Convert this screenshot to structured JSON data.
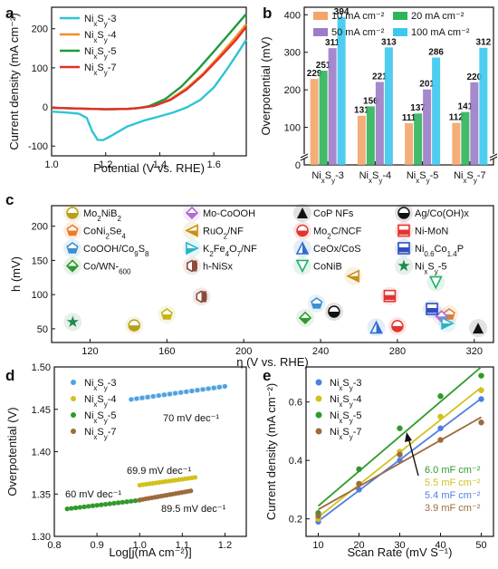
{
  "panels": {
    "a": {
      "label": "a"
    },
    "b": {
      "label": "b"
    },
    "c": {
      "label": "c"
    },
    "d": {
      "label": "d"
    },
    "e": {
      "label": "e"
    }
  },
  "chart_data": [
    {
      "panel": "a",
      "type": "line",
      "xlabel": "Potential (V vs. RHE)",
      "ylabel": "Current density (mA cm⁻²)",
      "xlim": [
        1.0,
        1.72
      ],
      "ylim": [
        -125,
        255
      ],
      "xticks": [
        "1.0",
        "1.2",
        "1.4",
        "1.6"
      ],
      "yticks": [
        "-100",
        "0",
        "100",
        "200"
      ],
      "legend_placement": "top-left",
      "series": [
        {
          "name": "NixSy-3",
          "color": "#2ec4d6",
          "points": [
            [
              1.0,
              -12
            ],
            [
              1.05,
              -14
            ],
            [
              1.1,
              -17
            ],
            [
              1.13,
              -28
            ],
            [
              1.15,
              -62
            ],
            [
              1.17,
              -84
            ],
            [
              1.19,
              -85
            ],
            [
              1.22,
              -74
            ],
            [
              1.28,
              -50
            ],
            [
              1.34,
              -35
            ],
            [
              1.4,
              -24
            ],
            [
              1.45,
              -14
            ],
            [
              1.5,
              -1
            ],
            [
              1.55,
              18
            ],
            [
              1.6,
              50
            ],
            [
              1.65,
              98
            ],
            [
              1.7,
              150
            ],
            [
              1.72,
              172
            ]
          ]
        },
        {
          "name": "NixSy-4",
          "color": "#f28c28",
          "points": [
            [
              1.0,
              -2
            ],
            [
              1.1,
              -4
            ],
            [
              1.2,
              -6
            ],
            [
              1.28,
              -5
            ],
            [
              1.32,
              -3
            ],
            [
              1.38,
              3
            ],
            [
              1.44,
              20
            ],
            [
              1.5,
              48
            ],
            [
              1.56,
              85
            ],
            [
              1.62,
              130
            ],
            [
              1.68,
              178
            ],
            [
              1.72,
              212
            ]
          ]
        },
        {
          "name": "NixSy-5",
          "color": "#1f9a3c",
          "points": [
            [
              1.0,
              -2
            ],
            [
              1.1,
              -4
            ],
            [
              1.2,
              -6
            ],
            [
              1.28,
              -5
            ],
            [
              1.32,
              -3
            ],
            [
              1.36,
              2
            ],
            [
              1.42,
              20
            ],
            [
              1.48,
              52
            ],
            [
              1.54,
              95
            ],
            [
              1.6,
              142
            ],
            [
              1.66,
              190
            ],
            [
              1.72,
              238
            ]
          ]
        },
        {
          "name": "NixSy-7",
          "color": "#e0312a",
          "points": [
            [
              1.0,
              -2
            ],
            [
              1.1,
              -4
            ],
            [
              1.2,
              -6
            ],
            [
              1.28,
              -5
            ],
            [
              1.32,
              -3
            ],
            [
              1.38,
              3
            ],
            [
              1.44,
              18
            ],
            [
              1.5,
              45
            ],
            [
              1.56,
              82
            ],
            [
              1.62,
              125
            ],
            [
              1.68,
              170
            ],
            [
              1.72,
              205
            ]
          ]
        }
      ]
    },
    {
      "panel": "b",
      "type": "bar",
      "ylabel": "Overpotential (mV)",
      "ylim_display": [
        0,
        420
      ],
      "axis_break": "y",
      "yticks": [
        "0",
        "100",
        "200",
        "300",
        "400"
      ],
      "categories": [
        "NixSy-3",
        "NixSy-4",
        "NixSy-5",
        "NixSy-7"
      ],
      "legend_placement": "top-right",
      "series": [
        {
          "name": "10 mA cm⁻²",
          "color": "#f4a46a",
          "values": [
            229,
            131,
            111,
            112
          ]
        },
        {
          "name": "20 mA cm⁻²",
          "color": "#2fb45a",
          "values": [
            251,
            156,
            137,
            141
          ]
        },
        {
          "name": "50 mA cm⁻²",
          "color": "#9b7cc7",
          "values": [
            311,
            221,
            201,
            220
          ]
        },
        {
          "name": "100 mA cm⁻²",
          "color": "#3cc8ef",
          "values": [
            394,
            313,
            286,
            312
          ]
        }
      ]
    },
    {
      "panel": "c",
      "type": "scatter",
      "xlabel": "η (V vs. RHE)",
      "ylabel": "h (mV)",
      "xlim": [
        100,
        330
      ],
      "ylim": [
        30,
        230
      ],
      "xticks": [
        "120",
        "160",
        "200",
        "240",
        "280",
        "320"
      ],
      "yticks": [
        "50",
        "100",
        "150",
        "200"
      ],
      "legend_placement": "top",
      "points": [
        {
          "name": "Mo2NiB2",
          "marker": "half-circle",
          "color": "#b8a018",
          "x": 143,
          "y": 55
        },
        {
          "name": "CoNi2Se4",
          "marker": "pentagon",
          "color": "#f07a28",
          "x": 307,
          "y": 71
        },
        {
          "name": "CoOOH/Co9S8",
          "marker": "pentagon",
          "color": "#3d8fd0",
          "x": 238,
          "y": 87
        },
        {
          "name": "Co/WN-600",
          "marker": "diamond",
          "color": "#2e9a2e",
          "x": 232,
          "y": 66
        },
        {
          "name": "Mo-CoOOH",
          "marker": "diamond",
          "color": "#b46ad6",
          "x": 303,
          "y": 68
        },
        {
          "name": "RuO2/NF",
          "marker": "triangle-left",
          "color": "#c8901a",
          "x": 257,
          "y": 127
        },
        {
          "name": "K2Fe4O7/NF",
          "marker": "triangle-right",
          "color": "#28b4c8",
          "x": 306,
          "y": 58
        },
        {
          "name": "h-NiSx",
          "marker": "hexagon",
          "color": "#8a4a3a",
          "x": 178,
          "y": 97
        },
        {
          "name": "CoP NFs",
          "marker": "triangle-up",
          "color": "#111111",
          "x": 322,
          "y": 51
        },
        {
          "name": "Mo2C/NCF",
          "marker": "half-circle",
          "color": "#e2342e",
          "x": 280,
          "y": 54
        },
        {
          "name": "CeOx/CoS",
          "marker": "triangle-up",
          "color": "#2f6fd0",
          "x": 269,
          "y": 52
        },
        {
          "name": "CoNiB",
          "marker": "triangle-down",
          "color": "#1fae68",
          "x": 300,
          "y": 118
        },
        {
          "name": "Ag/Co(OH)x",
          "marker": "half-circle",
          "color": "#111111",
          "x": 247,
          "y": 75
        },
        {
          "name": "Ni-MoN",
          "marker": "square-bar",
          "color": "#e2342e",
          "x": 276,
          "y": 98
        },
        {
          "name": "Ni0.6Co1.4P",
          "marker": "square-bar",
          "color": "#2f4fc0",
          "x": 298,
          "y": 79
        },
        {
          "name": "NixSy-5",
          "marker": "star",
          "color": "#1f8a50",
          "x": 111,
          "y": 60
        },
        {
          "name": "",
          "marker": "pentagon",
          "color": "#c8b418",
          "x": 160,
          "y": 71
        }
      ]
    },
    {
      "panel": "d",
      "type": "scatter",
      "xlabel": "Log[j(mA cm⁻²)]",
      "ylabel": "Overpotential (V)",
      "xlim": [
        0.8,
        1.25
      ],
      "ylim": [
        1.3,
        1.5
      ],
      "xticks": [
        "0.8",
        "0.9",
        "1.0",
        "1.1",
        "1.2"
      ],
      "yticks": [
        "1.30",
        "1.35",
        "1.40",
        "1.45",
        "1.50"
      ],
      "legend_placement": "top-left",
      "series": [
        {
          "name": "NixSy-3",
          "color": "#4fa3de",
          "x_range": [
            0.98,
            1.2
          ],
          "y_start": 1.4617,
          "slope": 0.07,
          "annotation": "70 mV dec⁻¹"
        },
        {
          "name": "NixSy-4",
          "color": "#d2c11e",
          "x_range": [
            1.0,
            1.13
          ],
          "y_start": 1.3605,
          "slope": 0.0699,
          "annotation": "69.9 mV dec⁻¹"
        },
        {
          "name": "NixSy-5",
          "color": "#2f9a2a",
          "x_range": [
            0.83,
            1.0
          ],
          "y_start": 1.3325,
          "slope": 0.06,
          "annotation": "60 mV dec⁻¹"
        },
        {
          "name": "NixSy-7",
          "color": "#9c6b3c",
          "x_range": [
            1.0,
            1.12
          ],
          "y_start": 1.343,
          "slope": 0.0895,
          "annotation": "89.5 mV dec⁻¹"
        }
      ]
    },
    {
      "panel": "e",
      "type": "scatter",
      "xlabel": "Scan Rate (mV S⁻¹)",
      "ylabel": "Current density (mA cm⁻²)",
      "xlim": [
        7,
        53
      ],
      "ylim": [
        0.14,
        0.72
      ],
      "xticks": [
        "10",
        "20",
        "30",
        "40",
        "50"
      ],
      "yticks": [
        "0.2",
        "0.4",
        "0.6"
      ],
      "legend_placement": "top-left",
      "series": [
        {
          "name": "NixSy-3",
          "color": "#4f7fe0",
          "x": [
            10,
            20,
            30,
            40,
            50
          ],
          "y": [
            0.19,
            0.3,
            0.4,
            0.51,
            0.61
          ],
          "annotation": "5.4 mF cm⁻²"
        },
        {
          "name": "NixSy-4",
          "color": "#d2c11e",
          "x": [
            10,
            20,
            30,
            40,
            50
          ],
          "y": [
            0.2,
            0.32,
            0.43,
            0.55,
            0.64
          ],
          "annotation": "5.5 mF cm⁻²"
        },
        {
          "name": "NixSy-5",
          "color": "#2f9a2a",
          "x": [
            10,
            20,
            30,
            40,
            50
          ],
          "y": [
            0.22,
            0.37,
            0.51,
            0.62,
            0.69
          ],
          "annotation": "6.0 mF cm⁻²"
        },
        {
          "name": "NixSy-7",
          "color": "#9c6b3c",
          "x": [
            10,
            20,
            30,
            40,
            50
          ],
          "y": [
            0.21,
            0.32,
            0.42,
            0.47,
            0.53
          ],
          "annotation": "3.9 mF cm⁻²"
        }
      ]
    }
  ]
}
